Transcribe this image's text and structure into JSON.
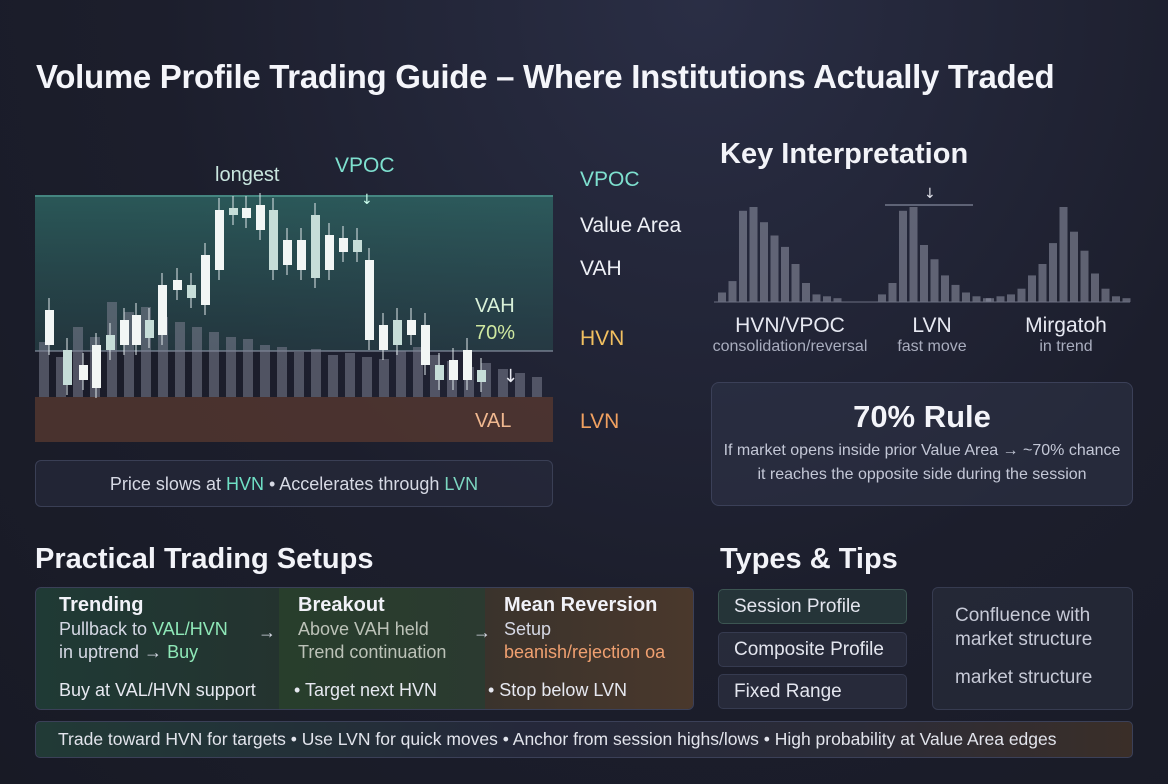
{
  "title": "Volume Profile Trading Guide – Where Institutions Actually Traded",
  "chart": {
    "label_longest": "longest",
    "label_vpoc": "VPOC",
    "label_vah": "VAH",
    "label_70": "70%",
    "label_val": "VAL"
  },
  "right_labels": {
    "vpoc": "VPOC",
    "value_area": "Value Area",
    "vah": "VAH",
    "hvn": "HVN",
    "lvn": "LVN"
  },
  "hint": {
    "part1": "Price slows at ",
    "hvn": "HVN",
    "part2": " • Accelerates through ",
    "lvn": "LVN"
  },
  "key": {
    "title": "Key Interpretation",
    "items": [
      {
        "main": "HVN/VPOC",
        "sub": "consolidation/reversal"
      },
      {
        "main": "LVN",
        "sub": "fast move"
      },
      {
        "main": "Mirgatoh",
        "sub": "in trend"
      }
    ]
  },
  "rule": {
    "title": "70% Rule",
    "line1": "If market opens inside prior Value Area → ~70% chance",
    "line2": "it reaches the opposite side during the session"
  },
  "setups": {
    "title": "Practical Trading Setups",
    "trending": {
      "head": "Trending",
      "line1a": "Pullback to ",
      "line1b": "VAL/HVN",
      "line2a": "in uptrend → ",
      "line2b": "Buy",
      "bottom": "Buy at VAL/HVN support"
    },
    "breakout": {
      "head": "Breakout",
      "line1": "Above VAH held",
      "line2": "Trend continuation",
      "bottom": "• Target next HVN"
    },
    "mean_reversion": {
      "head": "Mean Reversion",
      "line1": "Setup",
      "line2": "beanish/rejection oa",
      "bottom": "• Stop below LVN"
    },
    "arrow": "→"
  },
  "tips": {
    "title": "Types & Tips",
    "items": [
      "Session Profile",
      "Composite Profile",
      "Fixed Range"
    ],
    "card": [
      "Confluence with",
      "market structure",
      "market structure"
    ]
  },
  "footer": "Trade toward HVN for targets  •  Use LVN for quick moves  •  Anchor from session highs/lows  •  High probability at Value Area edges",
  "colors": {
    "accent_teal": "#6fe0c6",
    "hvn_label": "#f2c060",
    "lvn_label": "#f0a060",
    "vpoc_label": "#7ee0cf"
  }
}
